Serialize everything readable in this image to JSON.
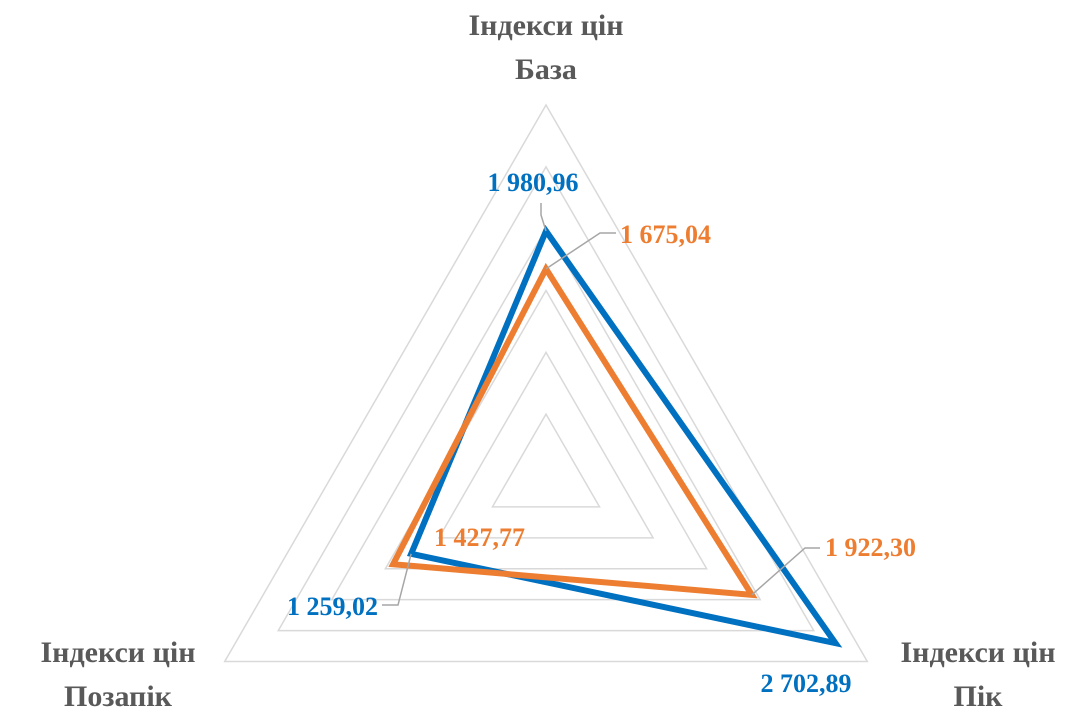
{
  "chart_data": {
    "type": "radar",
    "categories": [
      [
        "Індекси цін",
        "База"
      ],
      [
        "Індекси цін",
        "Пік"
      ],
      [
        "Індекси цін",
        "Позапік"
      ]
    ],
    "rlim": [
      0,
      3000
    ],
    "rticks": [
      0,
      500,
      1000,
      1500,
      2000,
      2500,
      3000
    ],
    "grid": true,
    "series": [
      {
        "color": "#0070c0",
        "values": [
          1980.96,
          2702.89,
          1259.02
        ],
        "value_labels": [
          "1 980,96",
          "2 702,89",
          "1 259,02"
        ]
      },
      {
        "color": "#ed7d31",
        "values": [
          1675.04,
          1922.3,
          1427.77
        ],
        "value_labels": [
          "1 675,04",
          "1 922,30",
          "1 427,77"
        ]
      }
    ]
  }
}
